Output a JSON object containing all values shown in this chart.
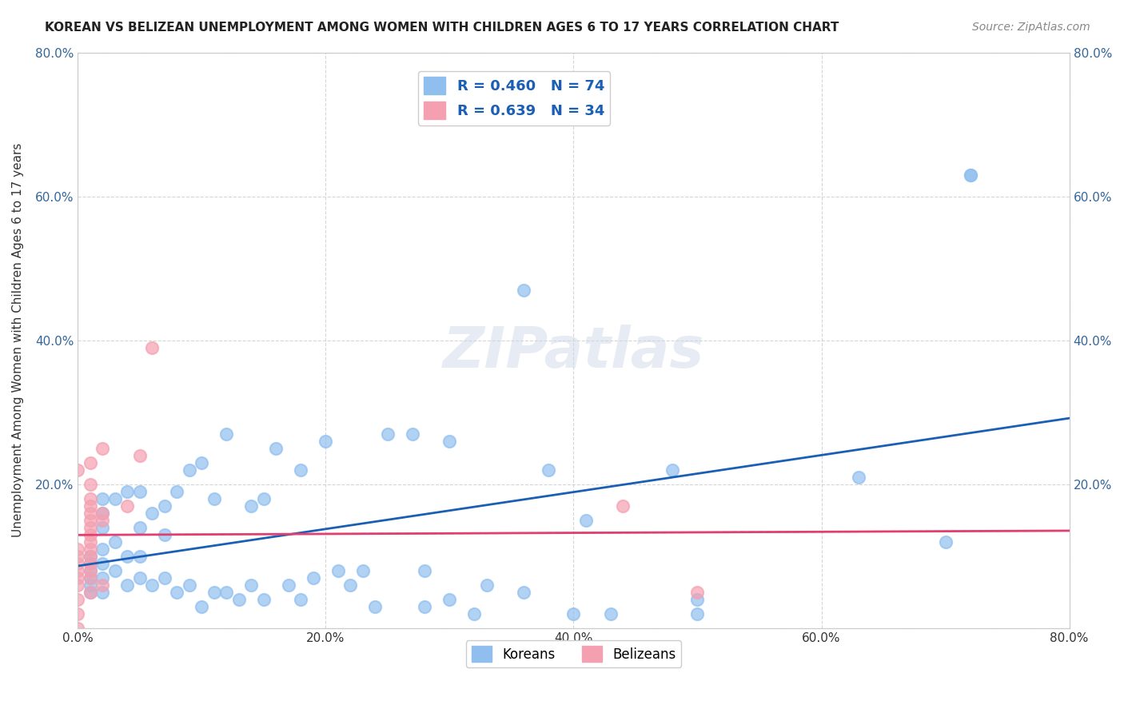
{
  "title": "KOREAN VS BELIZEAN UNEMPLOYMENT AMONG WOMEN WITH CHILDREN AGES 6 TO 17 YEARS CORRELATION CHART",
  "source": "Source: ZipAtlas.com",
  "xlabel": "",
  "ylabel": "Unemployment Among Women with Children Ages 6 to 17 years",
  "xlim": [
    0.0,
    0.8
  ],
  "ylim": [
    0.0,
    0.8
  ],
  "xticks": [
    0.0,
    0.2,
    0.4,
    0.6,
    0.8
  ],
  "yticks": [
    0.0,
    0.2,
    0.4,
    0.6,
    0.8
  ],
  "xticklabels": [
    "0.0%",
    "20.0%",
    "40.0%",
    "60.0%",
    "80.0%"
  ],
  "yticklabels": [
    "",
    "20.0%",
    "40.0%",
    "60.0%",
    "80.0%"
  ],
  "korean_R": 0.46,
  "korean_N": 74,
  "belizean_R": 0.639,
  "belizean_N": 34,
  "korean_color": "#90bfef",
  "belizean_color": "#f4a0b0",
  "korean_line_color": "#1a5fb4",
  "belizean_line_color": "#e04070",
  "watermark": "ZIPatlas",
  "background_color": "#ffffff",
  "grid_color": "#cccccc",
  "legend_text_color": "#1a5fb4",
  "korean_scatter_x": [
    0.01,
    0.01,
    0.01,
    0.01,
    0.01,
    0.01,
    0.02,
    0.02,
    0.02,
    0.02,
    0.02,
    0.02,
    0.02,
    0.03,
    0.03,
    0.03,
    0.04,
    0.04,
    0.04,
    0.05,
    0.05,
    0.05,
    0.05,
    0.06,
    0.06,
    0.07,
    0.07,
    0.07,
    0.08,
    0.08,
    0.09,
    0.09,
    0.1,
    0.1,
    0.11,
    0.11,
    0.12,
    0.12,
    0.13,
    0.14,
    0.14,
    0.15,
    0.15,
    0.16,
    0.17,
    0.18,
    0.18,
    0.19,
    0.2,
    0.21,
    0.22,
    0.23,
    0.24,
    0.25,
    0.27,
    0.28,
    0.28,
    0.3,
    0.3,
    0.32,
    0.33,
    0.36,
    0.36,
    0.38,
    0.4,
    0.41,
    0.43,
    0.48,
    0.5,
    0.5,
    0.63,
    0.7,
    0.72,
    0.72
  ],
  "korean_scatter_y": [
    0.05,
    0.06,
    0.07,
    0.08,
    0.09,
    0.1,
    0.05,
    0.07,
    0.09,
    0.11,
    0.14,
    0.16,
    0.18,
    0.08,
    0.12,
    0.18,
    0.06,
    0.1,
    0.19,
    0.07,
    0.1,
    0.14,
    0.19,
    0.06,
    0.16,
    0.07,
    0.13,
    0.17,
    0.05,
    0.19,
    0.06,
    0.22,
    0.03,
    0.23,
    0.05,
    0.18,
    0.05,
    0.27,
    0.04,
    0.06,
    0.17,
    0.04,
    0.18,
    0.25,
    0.06,
    0.04,
    0.22,
    0.07,
    0.26,
    0.08,
    0.06,
    0.08,
    0.03,
    0.27,
    0.27,
    0.03,
    0.08,
    0.04,
    0.26,
    0.02,
    0.06,
    0.47,
    0.05,
    0.22,
    0.02,
    0.15,
    0.02,
    0.22,
    0.02,
    0.04,
    0.21,
    0.12,
    0.63,
    0.63
  ],
  "belizean_scatter_x": [
    0.0,
    0.0,
    0.0,
    0.0,
    0.0,
    0.0,
    0.0,
    0.0,
    0.0,
    0.0,
    0.01,
    0.01,
    0.01,
    0.01,
    0.01,
    0.01,
    0.01,
    0.01,
    0.01,
    0.01,
    0.01,
    0.01,
    0.01,
    0.01,
    0.01,
    0.02,
    0.02,
    0.02,
    0.02,
    0.04,
    0.05,
    0.06,
    0.44,
    0.5
  ],
  "belizean_scatter_y": [
    0.0,
    0.02,
    0.04,
    0.06,
    0.07,
    0.08,
    0.09,
    0.1,
    0.11,
    0.22,
    0.05,
    0.07,
    0.08,
    0.09,
    0.1,
    0.11,
    0.12,
    0.13,
    0.14,
    0.15,
    0.16,
    0.17,
    0.18,
    0.2,
    0.23,
    0.06,
    0.15,
    0.16,
    0.25,
    0.17,
    0.24,
    0.39,
    0.17,
    0.05
  ]
}
